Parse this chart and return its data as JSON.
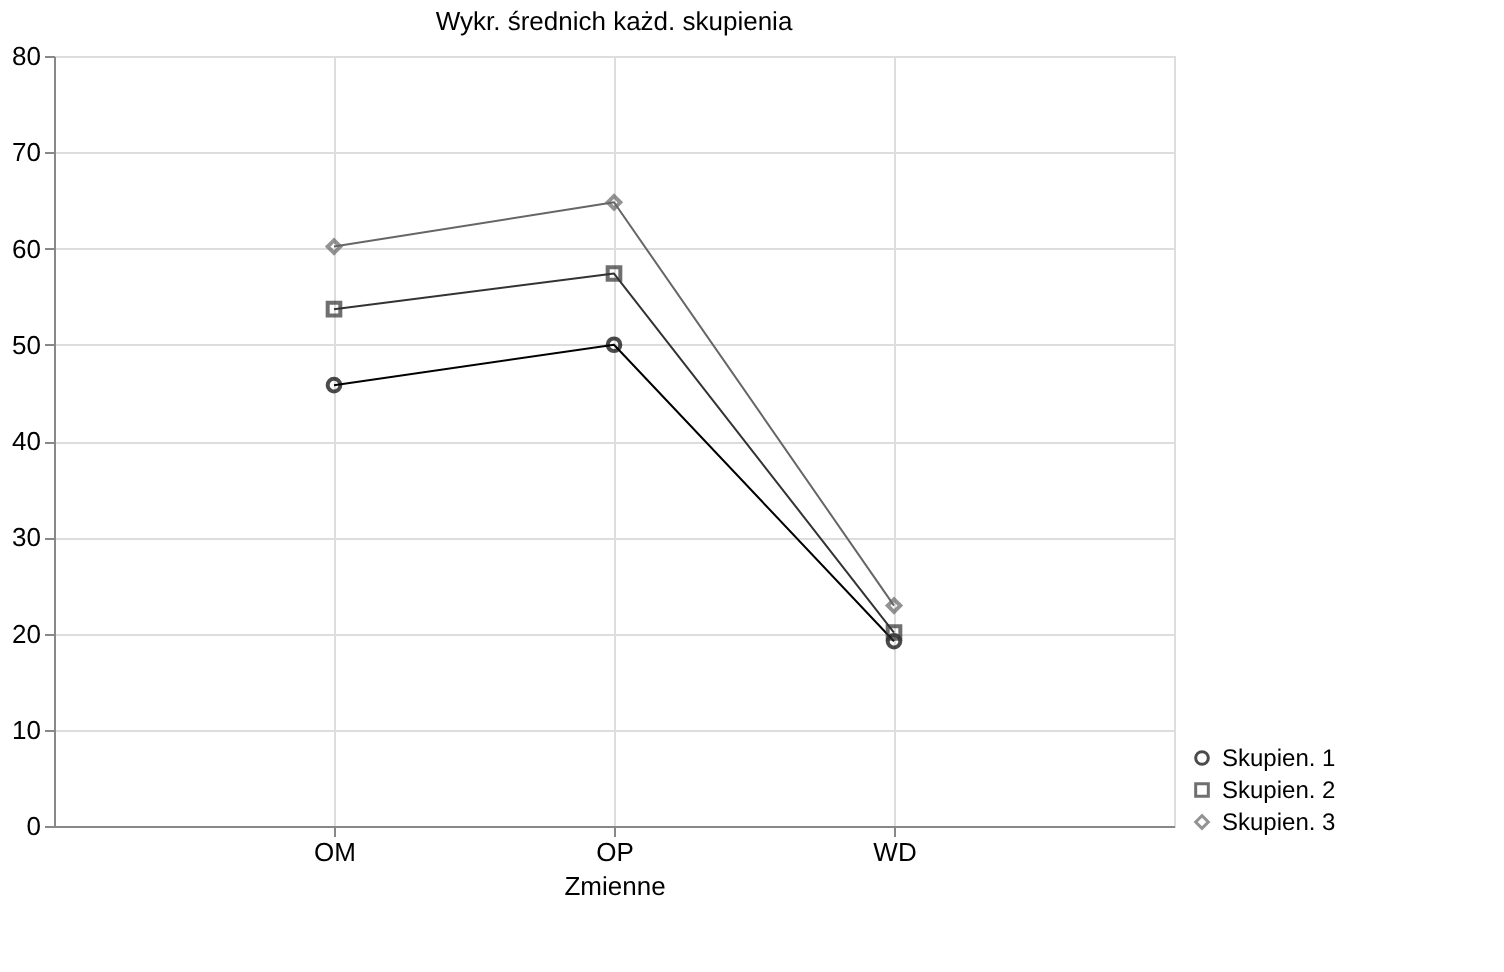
{
  "chart_data": {
    "type": "line",
    "title": "Wykr. średnich każd. skupienia",
    "xlabel": "Zmienne",
    "categories": [
      "OM",
      "OP",
      "WD"
    ],
    "series": [
      {
        "name": "Skupien. 1",
        "color": "#000000",
        "marker": "circle",
        "values": [
          45.8,
          50.0,
          19.2
        ]
      },
      {
        "name": "Skupien. 2",
        "color": "#333333",
        "marker": "square",
        "values": [
          53.7,
          57.4,
          20.1
        ]
      },
      {
        "name": "Skupien. 3",
        "color": "#666666",
        "marker": "diamond",
        "values": [
          60.2,
          64.8,
          22.9
        ]
      }
    ],
    "ylim": [
      0,
      80
    ],
    "yticks": [
      0,
      10,
      20,
      30,
      40,
      50,
      60,
      70,
      80
    ],
    "grid": true,
    "legend": "bottom right",
    "line_style": "solid"
  }
}
